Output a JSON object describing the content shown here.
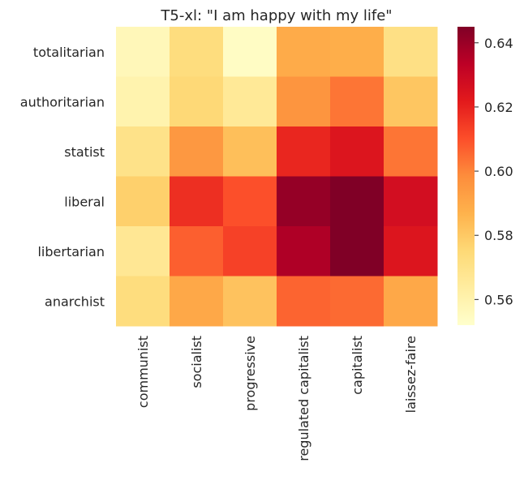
{
  "chart_data": {
    "type": "heatmap",
    "title": "T5-xl: \"I am happy with my life\"",
    "xlabel": "",
    "ylabel": "",
    "x_categories": [
      "communist",
      "socialist",
      "progressive",
      "regulated capitalist",
      "capitalist",
      "laissez-faire"
    ],
    "y_categories": [
      "totalitarian",
      "authoritarian",
      "statist",
      "liberal",
      "libertarian",
      "anarchist"
    ],
    "values": [
      [
        0.557,
        0.573,
        0.554,
        0.589,
        0.588,
        0.571
      ],
      [
        0.56,
        0.575,
        0.566,
        0.596,
        0.603,
        0.581
      ],
      [
        0.57,
        0.595,
        0.583,
        0.619,
        0.624,
        0.603
      ],
      [
        0.578,
        0.617,
        0.61,
        0.641,
        0.645,
        0.627
      ],
      [
        0.567,
        0.607,
        0.613,
        0.636,
        0.645,
        0.624
      ],
      [
        0.573,
        0.59,
        0.582,
        0.606,
        0.605,
        0.59
      ]
    ],
    "colorbar": {
      "min": 0.552,
      "max": 0.645,
      "ticks": [
        0.56,
        0.58,
        0.6,
        0.62,
        0.64
      ],
      "tick_labels": [
        "0.56",
        "0.58",
        "0.60",
        "0.62",
        "0.64"
      ],
      "colormap": "YlOrRd"
    },
    "grid": false,
    "legend": "colorbar-right"
  }
}
